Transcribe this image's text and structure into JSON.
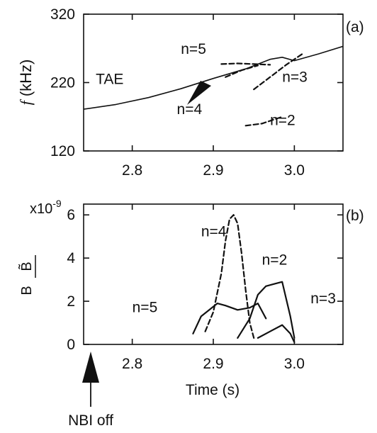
{
  "chart_data": [
    {
      "type": "line",
      "panel_label": "(a)",
      "ylabel_italic": "f",
      "ylabel_unit": " (kHz)",
      "xlim": [
        2.74,
        3.06
      ],
      "ylim": [
        120,
        320
      ],
      "xticks": [
        {
          "value": 2.8,
          "label": "2.8"
        },
        {
          "value": 2.9,
          "label": "2.9"
        },
        {
          "value": 3.0,
          "label": "3.0"
        }
      ],
      "yticks": [
        {
          "value": 120,
          "label": "120"
        },
        {
          "value": 220,
          "label": "220"
        },
        {
          "value": 320,
          "label": "320"
        }
      ],
      "series": [
        {
          "name": "TAE",
          "style": "solid",
          "x": [
            2.74,
            2.78,
            2.82,
            2.86,
            2.9,
            2.94,
            2.97,
            2.985,
            3.0,
            3.03,
            3.06
          ],
          "y": [
            181,
            188,
            198,
            211,
            226,
            240,
            254,
            257,
            252,
            262,
            273
          ]
        },
        {
          "name": "n=5",
          "style": "dash",
          "x": [
            2.91,
            2.93,
            2.95,
            2.97
          ],
          "y": [
            247,
            248,
            247,
            246
          ]
        },
        {
          "name": "n=4",
          "style": "dash",
          "x": [
            2.915,
            2.935,
            2.955
          ],
          "y": [
            228,
            238,
            245
          ]
        },
        {
          "name": "n=3",
          "style": "dash",
          "x": [
            2.95,
            2.97,
            2.99,
            3.01
          ],
          "y": [
            210,
            228,
            246,
            262
          ]
        },
        {
          "name": "n=2",
          "style": "dash",
          "x": [
            2.94,
            2.96,
            2.985
          ],
          "y": [
            157,
            160,
            170
          ]
        }
      ],
      "annotations": [
        {
          "text": "n=5",
          "x": 2.86,
          "y": 262
        },
        {
          "text": "TAE",
          "x": 2.755,
          "y": 218
        },
        {
          "text": "n=3",
          "x": 2.985,
          "y": 221
        },
        {
          "text": "n=4",
          "x": 2.855,
          "y": 174
        },
        {
          "text": "n=2",
          "x": 2.97,
          "y": 158
        }
      ],
      "arrow": {
        "x": 2.875,
        "y": 188,
        "direction": "down-left"
      }
    },
    {
      "type": "line",
      "panel_label": "(b)",
      "ylabel": "B̃/B",
      "ylabel_numerator": "B̃",
      "ylabel_denominator": "B",
      "yscale_label": "x10",
      "yscale_exp": "-9",
      "xlabel": "Time (s)",
      "xlim": [
        2.74,
        3.06
      ],
      "ylim": [
        0,
        6.5
      ],
      "xticks": [
        {
          "value": 2.8,
          "label": "2.8"
        },
        {
          "value": 2.9,
          "label": "2.9"
        },
        {
          "value": 3.0,
          "label": "3.0"
        }
      ],
      "yticks": [
        {
          "value": 0,
          "label": "0"
        },
        {
          "value": 2,
          "label": "2"
        },
        {
          "value": 4,
          "label": "4"
        },
        {
          "value": 6,
          "label": "6"
        }
      ],
      "series": [
        {
          "name": "n=4",
          "style": "dash",
          "x": [
            2.89,
            2.9,
            2.91,
            2.915,
            2.92,
            2.925,
            2.93,
            2.935,
            2.94,
            2.945,
            2.95
          ],
          "y": [
            0.6,
            1.5,
            3.3,
            4.8,
            5.8,
            6.0,
            5.6,
            4.2,
            2.5,
            1.0,
            0.3
          ]
        },
        {
          "name": "n=5",
          "style": "solid",
          "x": [
            2.875,
            2.885,
            2.895,
            2.905,
            2.915,
            2.93,
            2.945,
            2.955,
            2.965
          ],
          "y": [
            0.5,
            1.3,
            1.6,
            1.9,
            1.8,
            1.6,
            1.7,
            1.9,
            1.2
          ]
        },
        {
          "name": "n=2",
          "style": "solid",
          "x": [
            2.93,
            2.945,
            2.955,
            2.965,
            2.975,
            2.985,
            2.995,
            3.0
          ],
          "y": [
            0.3,
            1.2,
            2.3,
            2.7,
            2.8,
            2.9,
            1.3,
            0.3
          ]
        },
        {
          "name": "n=3",
          "style": "solid",
          "x": [
            2.955,
            2.97,
            2.985,
            2.995,
            3.0
          ],
          "y": [
            0.3,
            0.6,
            0.9,
            0.5,
            0.1
          ]
        }
      ],
      "annotations": [
        {
          "text": "n=4",
          "x": 2.885,
          "y": 5.0
        },
        {
          "text": "n=2",
          "x": 2.96,
          "y": 3.7
        },
        {
          "text": "n=5",
          "x": 2.8,
          "y": 1.5
        },
        {
          "text": "n=3",
          "x": 3.02,
          "y": 1.9
        }
      ]
    }
  ],
  "nbi_marker": {
    "label": "NBI off",
    "x": 2.755
  }
}
